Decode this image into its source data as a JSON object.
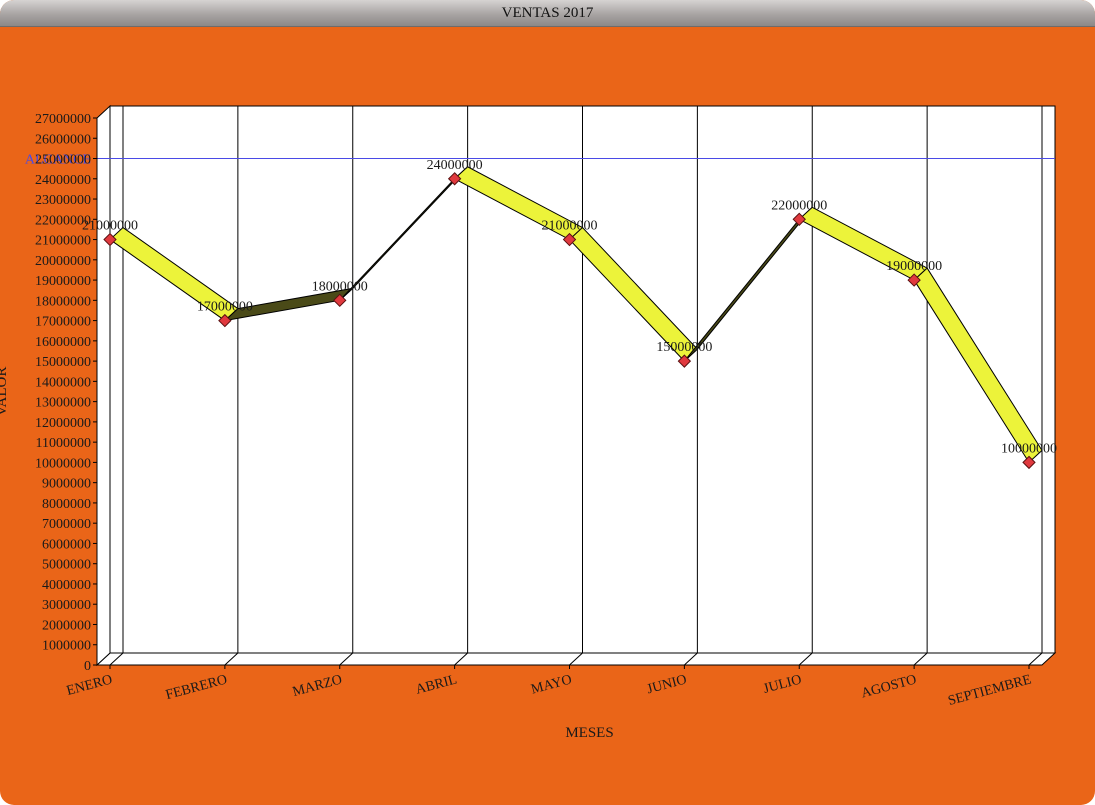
{
  "window": {
    "title": "VENTAS 2017"
  },
  "colors": {
    "background": "#ea6518",
    "plot": "#ffffff",
    "ribbon": "#ecf33a",
    "marker": "#e0393e",
    "reference_line": "#4a4ae6"
  },
  "chart_data": {
    "type": "line",
    "title": "VENTAS 2017",
    "xlabel": "MESES",
    "ylabel": "VALOR",
    "categories": [
      "ENERO",
      "FEBRERO",
      "MARZO",
      "ABRIL",
      "MAYO",
      "JUNIO",
      "JULIO",
      "AGOSTO",
      "SEPTIEMBRE"
    ],
    "series": [
      {
        "values": [
          21000000,
          17000000,
          18000000,
          24000000,
          21000000,
          15000000,
          22000000,
          19000000,
          10000000
        ]
      }
    ],
    "data_labels": [
      "21000000",
      "17000000",
      "18000000",
      "24000000",
      "21000000",
      "15000000",
      "22000000",
      "19000000",
      "10000000"
    ],
    "ylim": [
      0,
      27000000
    ],
    "ytick_step": 1000000,
    "reference_line": {
      "label": "ALCANCE",
      "value": 25000000
    },
    "grid": "vertical",
    "legend": "none",
    "style": "3d-ribbon-line"
  }
}
